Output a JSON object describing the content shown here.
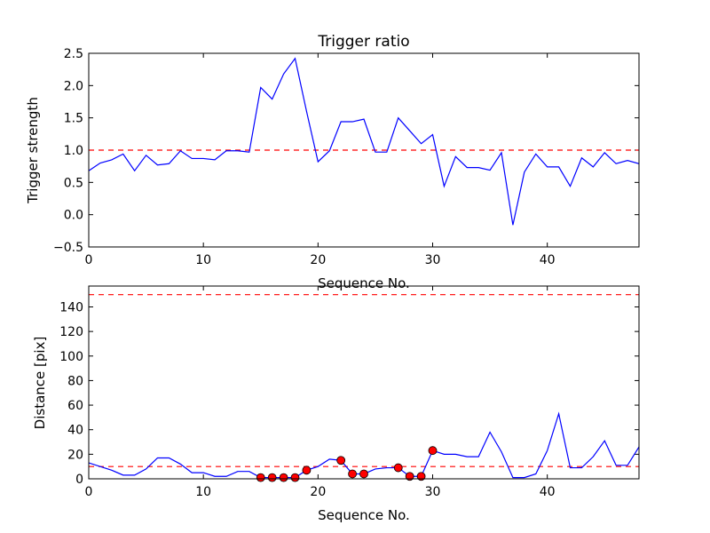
{
  "chart_data": [
    {
      "type": "line",
      "title": "Trigger ratio",
      "xlabel": "Sequence No.",
      "ylabel": "Trigger strength",
      "xlim": [
        0,
        48
      ],
      "ylim": [
        -0.5,
        2.5
      ],
      "xticks": [
        0,
        10,
        20,
        30,
        40
      ],
      "yticks": [
        -0.5,
        0.0,
        0.5,
        1.0,
        1.5,
        2.0,
        2.5
      ],
      "ytick_labels": [
        "−0.5",
        "0.0",
        "0.5",
        "1.0",
        "1.5",
        "2.0",
        "2.5"
      ],
      "threshold": {
        "value": 1.0,
        "style": "dashed",
        "color": "#ff0000"
      },
      "series": [
        {
          "name": "trigger strength",
          "color": "#0000ff",
          "x": [
            0,
            1,
            2,
            3,
            4,
            5,
            6,
            7,
            8,
            9,
            10,
            11,
            12,
            13,
            14,
            15,
            16,
            17,
            18,
            19,
            20,
            21,
            22,
            23,
            24,
            25,
            26,
            27,
            28,
            29,
            30,
            31,
            32,
            33,
            34,
            35,
            36,
            37,
            38,
            39,
            40,
            41,
            42,
            43,
            44,
            45,
            46,
            47,
            48
          ],
          "values": [
            0.68,
            0.8,
            0.85,
            0.94,
            0.68,
            0.92,
            0.77,
            0.79,
            0.99,
            0.87,
            0.87,
            0.85,
            0.99,
            0.99,
            0.97,
            1.97,
            1.79,
            2.18,
            2.42,
            1.6,
            0.82,
            0.99,
            1.44,
            1.44,
            1.48,
            0.97,
            0.97,
            1.5,
            1.3,
            1.1,
            1.24,
            0.44,
            0.9,
            0.73,
            0.73,
            0.69,
            0.96,
            -0.16,
            0.66,
            0.94,
            0.74,
            0.74,
            0.44,
            0.88,
            0.74,
            0.96,
            0.79,
            0.84,
            0.79
          ]
        }
      ]
    },
    {
      "type": "line",
      "title": "",
      "xlabel": "Sequence No.",
      "ylabel": "Distance [pix]",
      "xlim": [
        0,
        48
      ],
      "ylim": [
        0,
        157
      ],
      "xticks": [
        0,
        10,
        20,
        30,
        40
      ],
      "yticks": [
        0,
        20,
        40,
        60,
        80,
        100,
        120,
        140
      ],
      "ytick_labels": [
        "0",
        "20",
        "40",
        "60",
        "80",
        "100",
        "120",
        "140"
      ],
      "thresholds": [
        {
          "value": 10,
          "style": "dashed",
          "color": "#ff0000"
        },
        {
          "value": 150,
          "style": "dashed",
          "color": "#ff0000"
        }
      ],
      "series": [
        {
          "name": "distance",
          "color": "#0000ff",
          "x": [
            0,
            1,
            2,
            3,
            4,
            5,
            6,
            7,
            8,
            9,
            10,
            11,
            12,
            13,
            14,
            15,
            16,
            17,
            18,
            19,
            20,
            21,
            22,
            23,
            24,
            25,
            26,
            27,
            28,
            29,
            30,
            31,
            32,
            33,
            34,
            35,
            36,
            37,
            38,
            39,
            40,
            41,
            42,
            43,
            44,
            45,
            46,
            47,
            48
          ],
          "values": [
            13,
            10,
            7,
            3,
            3,
            8,
            17,
            17,
            12,
            5,
            5,
            2,
            2,
            6,
            6,
            1,
            1,
            1,
            1,
            7,
            10,
            16,
            15,
            4,
            4,
            8,
            9,
            9,
            2,
            2,
            23,
            20,
            20,
            18,
            18,
            38,
            22,
            1,
            1,
            4,
            23,
            53,
            9,
            9,
            18,
            31,
            11,
            11,
            26
          ]
        },
        {
          "name": "triggered points",
          "type": "scatter",
          "color": "#ff0000",
          "x": [
            15,
            16,
            17,
            18,
            19,
            22,
            23,
            24,
            27,
            28,
            29,
            30
          ],
          "values": [
            1,
            1,
            1,
            1,
            7,
            15,
            4,
            4,
            9,
            2,
            2,
            23
          ]
        }
      ]
    }
  ],
  "colors": {
    "line": "#0000ff",
    "threshold": "#ff0000",
    "marker": "#ff0000",
    "marker_edge": "#000000",
    "axes": "#000000",
    "background": "#ffffff"
  }
}
